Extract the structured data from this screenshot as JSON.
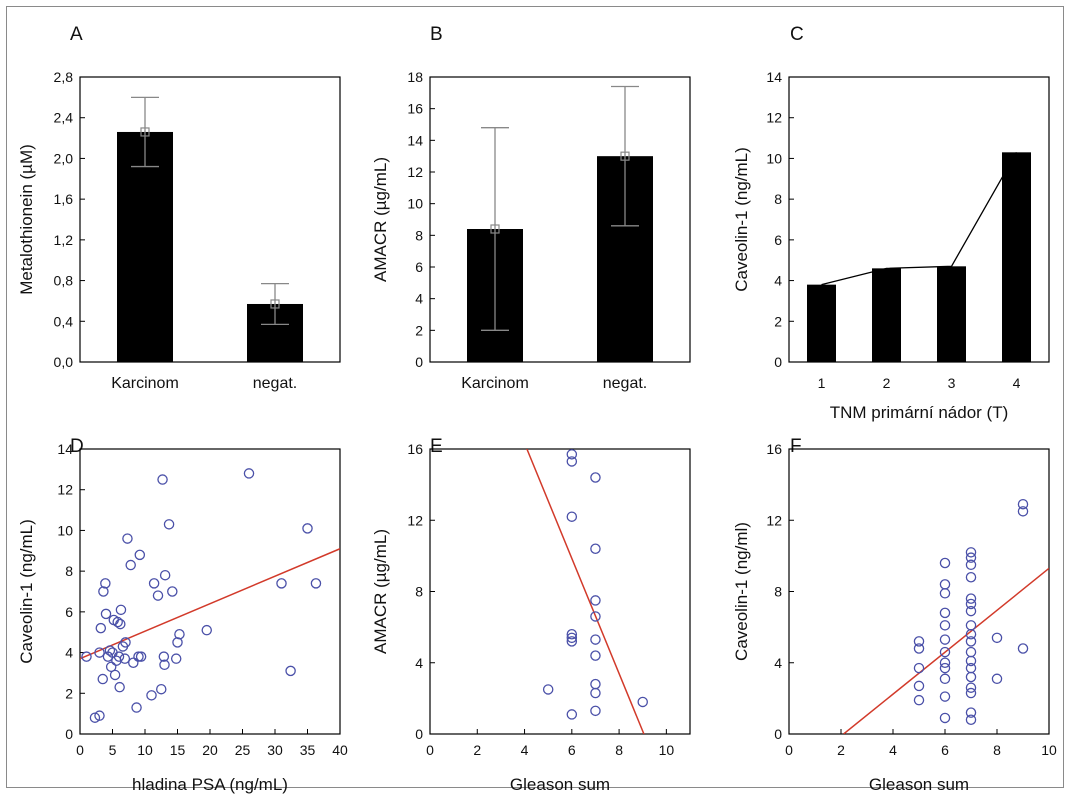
{
  "figure": {
    "panel_letters": [
      "A",
      "B",
      "C",
      "D",
      "E",
      "F"
    ],
    "colors": {
      "bar": "#000000",
      "scatter_marker": "#4a50a8",
      "regression": "#d23a2a",
      "errorbar": "#888888",
      "frame": "#8a8a8a"
    }
  },
  "chart_data": [
    {
      "panel": "A",
      "type": "bar",
      "categories": [
        "Karcinom",
        "negat."
      ],
      "values": [
        2.26,
        0.57
      ],
      "error_low": [
        1.92,
        0.37
      ],
      "error_high": [
        2.6,
        0.77
      ],
      "mean_marker": [
        2.26,
        0.57
      ],
      "xlabel": "",
      "ylabel": "Metalothionein (µM)",
      "ylim": [
        0,
        2.8
      ],
      "yticks": [
        0,
        0.4,
        0.8,
        1.2,
        1.6,
        2.0,
        2.4,
        2.8
      ],
      "ytick_labels": [
        "0,0",
        "0,4",
        "0,8",
        "1,2",
        "1,6",
        "2,0",
        "2,4",
        "2,8"
      ],
      "grid": false
    },
    {
      "panel": "B",
      "type": "bar",
      "categories": [
        "Karcinom",
        "negat."
      ],
      "values": [
        8.4,
        13.0
      ],
      "error_low": [
        2.0,
        8.6
      ],
      "error_high": [
        14.8,
        17.4
      ],
      "mean_marker": [
        8.4,
        13.0
      ],
      "xlabel": "",
      "ylabel": "AMACR (µg/mL)",
      "ylim": [
        0,
        18
      ],
      "yticks": [
        0,
        2,
        4,
        6,
        8,
        10,
        12,
        14,
        16,
        18
      ],
      "ytick_labels": [
        "0",
        "2",
        "4",
        "6",
        "8",
        "10",
        "12",
        "14",
        "16",
        "18"
      ],
      "grid": false
    },
    {
      "panel": "C",
      "type": "bar",
      "categories": [
        "1",
        "2",
        "3",
        "4"
      ],
      "values": [
        3.8,
        4.6,
        4.7,
        10.3
      ],
      "trend_line": [
        3.8,
        4.6,
        4.7,
        10.3
      ],
      "xlabel": "TNM primární nádor (T)",
      "ylabel": "Caveolin-1 (ng/mL)",
      "ylim": [
        0,
        14
      ],
      "yticks": [
        0,
        2,
        4,
        6,
        8,
        10,
        12,
        14
      ],
      "ytick_labels": [
        "0",
        "2",
        "4",
        "6",
        "8",
        "10",
        "12",
        "14"
      ],
      "grid": false
    },
    {
      "panel": "D",
      "type": "scatter",
      "xlabel": "hladina PSA (ng/mL)",
      "ylabel": "Caveolin-1 (ng/mL)",
      "xlim": [
        0,
        40
      ],
      "ylim": [
        0,
        14
      ],
      "xticks": [
        0,
        5,
        10,
        15,
        20,
        25,
        30,
        35,
        40
      ],
      "xtick_labels": [
        "0",
        "5",
        "10",
        "15",
        "20",
        "25",
        "30",
        "35",
        "40"
      ],
      "yticks": [
        0,
        2,
        4,
        6,
        8,
        10,
        12,
        14
      ],
      "ytick_labels": [
        "0",
        "2",
        "4",
        "6",
        "8",
        "10",
        "12",
        "14"
      ],
      "points": [
        [
          2.3,
          0.8
        ],
        [
          3.0,
          0.9
        ],
        [
          3.5,
          2.7
        ],
        [
          3.2,
          5.2
        ],
        [
          3.6,
          7.0
        ],
        [
          3.9,
          7.4
        ],
        [
          4.0,
          5.9
        ],
        [
          4.3,
          3.8
        ],
        [
          4.6,
          4.1
        ],
        [
          4.8,
          3.3
        ],
        [
          5.0,
          4.0
        ],
        [
          5.2,
          5.6
        ],
        [
          5.4,
          2.9
        ],
        [
          5.6,
          3.6
        ],
        [
          5.8,
          5.5
        ],
        [
          6.0,
          3.8
        ],
        [
          6.1,
          2.3
        ],
        [
          6.2,
          5.4
        ],
        [
          6.3,
          6.1
        ],
        [
          6.6,
          4.3
        ],
        [
          6.9,
          3.7
        ],
        [
          7.0,
          4.5
        ],
        [
          7.3,
          9.6
        ],
        [
          7.8,
          8.3
        ],
        [
          8.2,
          3.5
        ],
        [
          8.7,
          1.3
        ],
        [
          9.0,
          3.8
        ],
        [
          9.2,
          8.8
        ],
        [
          9.4,
          3.8
        ],
        [
          11.0,
          1.9
        ],
        [
          11.4,
          7.4
        ],
        [
          12.0,
          6.8
        ],
        [
          12.5,
          2.2
        ],
        [
          12.7,
          12.5
        ],
        [
          12.9,
          3.8
        ],
        [
          13.0,
          3.4
        ],
        [
          13.1,
          7.8
        ],
        [
          13.7,
          10.3
        ],
        [
          14.2,
          7.0
        ],
        [
          14.8,
          3.7
        ],
        [
          15.0,
          4.5
        ],
        [
          15.3,
          4.9
        ],
        [
          19.5,
          5.1
        ],
        [
          26.0,
          12.8
        ],
        [
          31.0,
          7.4
        ],
        [
          32.4,
          3.1
        ],
        [
          35.0,
          10.1
        ],
        [
          36.3,
          7.4
        ],
        [
          1.0,
          3.8
        ],
        [
          3.0,
          4.0
        ]
      ],
      "regression": [
        [
          0,
          3.7
        ],
        [
          40,
          9.1
        ]
      ],
      "grid": false
    },
    {
      "panel": "E",
      "type": "scatter",
      "xlabel": "Gleason sum",
      "ylabel": "AMACR (µg/mL)",
      "xlim": [
        0,
        11
      ],
      "ylim": [
        0,
        16
      ],
      "xticks": [
        0,
        2,
        4,
        6,
        8,
        10
      ],
      "xtick_labels": [
        "0",
        "2",
        "4",
        "6",
        "8",
        "10"
      ],
      "yticks": [
        0,
        4,
        8,
        12,
        16
      ],
      "ytick_labels": [
        "0",
        "4",
        "8",
        "12",
        "16"
      ],
      "points": [
        [
          5,
          2.5
        ],
        [
          6,
          15.7
        ],
        [
          6,
          15.3
        ],
        [
          6,
          12.2
        ],
        [
          6,
          5.6
        ],
        [
          6,
          5.4
        ],
        [
          6,
          5.2
        ],
        [
          6,
          1.1
        ],
        [
          7,
          14.4
        ],
        [
          7,
          10.4
        ],
        [
          7,
          7.5
        ],
        [
          7,
          6.6
        ],
        [
          7,
          5.3
        ],
        [
          7,
          4.4
        ],
        [
          7,
          2.8
        ],
        [
          7,
          2.3
        ],
        [
          7,
          1.3
        ],
        [
          9,
          1.8
        ]
      ],
      "regression": [
        [
          4.1,
          16
        ],
        [
          9.05,
          0
        ]
      ],
      "grid": false
    },
    {
      "panel": "F",
      "type": "scatter",
      "xlabel": "Gleason sum",
      "ylabel": "Caveolin-1 (ng/ml)",
      "xlim": [
        0,
        10
      ],
      "ylim": [
        0,
        16
      ],
      "xticks": [
        0,
        2,
        4,
        6,
        8,
        10
      ],
      "xtick_labels": [
        "0",
        "2",
        "4",
        "6",
        "8",
        "10"
      ],
      "yticks": [
        0,
        4,
        8,
        12,
        16
      ],
      "ytick_labels": [
        "0",
        "4",
        "8",
        "12",
        "16"
      ],
      "points": [
        [
          5,
          1.9
        ],
        [
          5,
          2.7
        ],
        [
          5,
          3.7
        ],
        [
          5,
          4.8
        ],
        [
          5,
          5.2
        ],
        [
          6,
          0.9
        ],
        [
          6,
          2.1
        ],
        [
          6,
          3.1
        ],
        [
          6,
          3.7
        ],
        [
          6,
          4.0
        ],
        [
          6,
          4.6
        ],
        [
          6,
          5.3
        ],
        [
          6,
          6.1
        ],
        [
          6,
          6.8
        ],
        [
          6,
          7.9
        ],
        [
          6,
          8.4
        ],
        [
          6,
          9.6
        ],
        [
          7,
          0.8
        ],
        [
          7,
          1.2
        ],
        [
          7,
          2.3
        ],
        [
          7,
          2.6
        ],
        [
          7,
          3.2
        ],
        [
          7,
          3.7
        ],
        [
          7,
          4.1
        ],
        [
          7,
          4.6
        ],
        [
          7,
          5.2
        ],
        [
          7,
          5.6
        ],
        [
          7,
          6.1
        ],
        [
          7,
          6.9
        ],
        [
          7,
          7.3
        ],
        [
          7,
          7.6
        ],
        [
          7,
          8.8
        ],
        [
          7,
          9.5
        ],
        [
          7,
          9.9
        ],
        [
          7,
          10.2
        ],
        [
          8,
          3.1
        ],
        [
          8,
          5.4
        ],
        [
          9,
          4.8
        ],
        [
          9,
          12.5
        ],
        [
          9,
          12.9
        ]
      ],
      "regression": [
        [
          2.1,
          0
        ],
        [
          10,
          9.3
        ]
      ],
      "grid": false
    }
  ]
}
